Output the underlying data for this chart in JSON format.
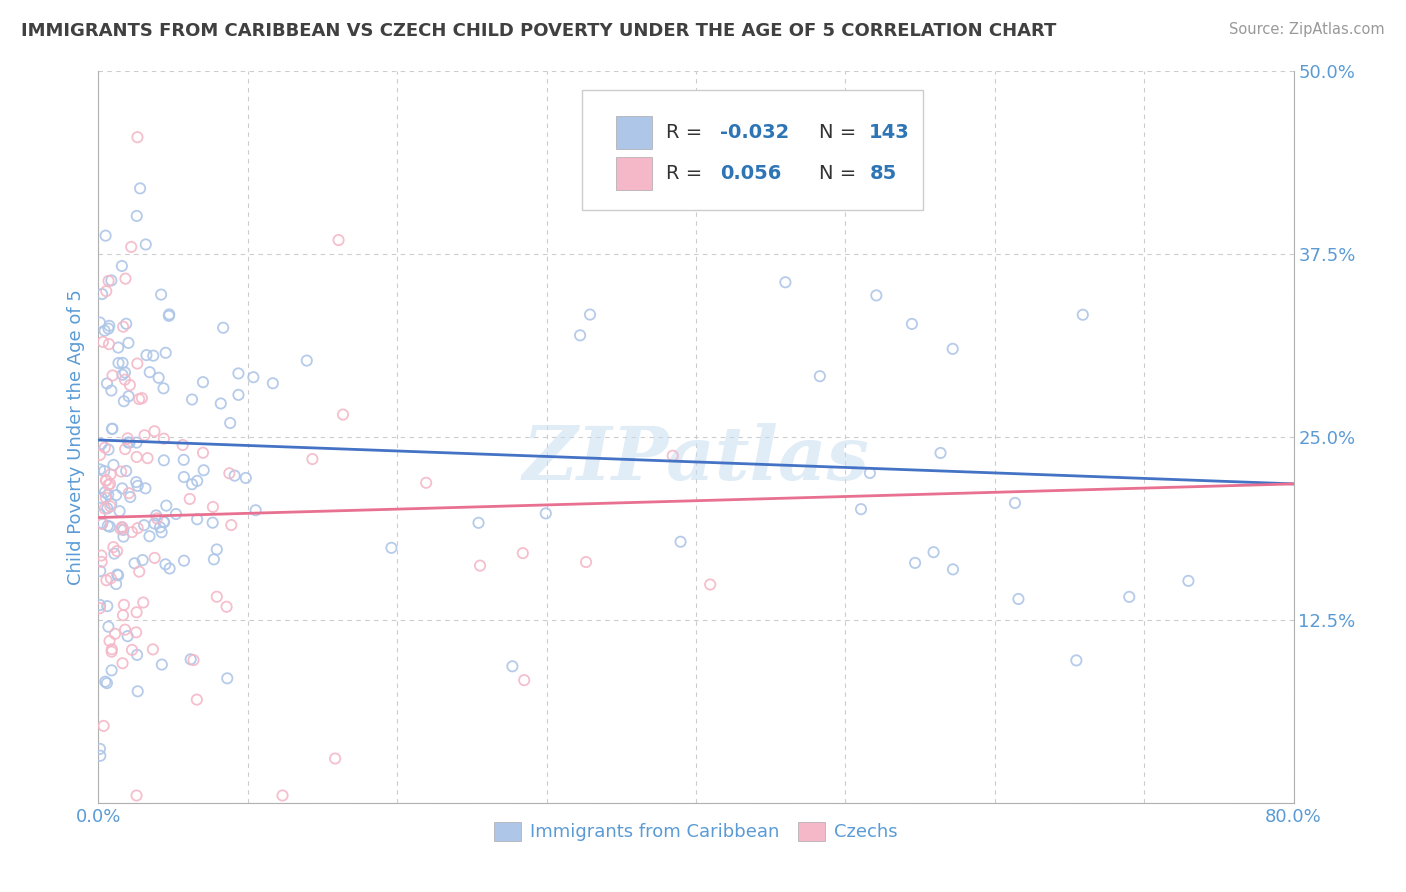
{
  "title": "IMMIGRANTS FROM CARIBBEAN VS CZECH CHILD POVERTY UNDER THE AGE OF 5 CORRELATION CHART",
  "source": "Source: ZipAtlas.com",
  "ylabel": "Child Poverty Under the Age of 5",
  "xlim": [
    0.0,
    0.8
  ],
  "ylim": [
    0.0,
    0.5
  ],
  "xticks": [
    0.0,
    0.1,
    0.2,
    0.3,
    0.4,
    0.5,
    0.6,
    0.7,
    0.8
  ],
  "xticklabels": [
    "0.0%",
    "",
    "",
    "",
    "",
    "",
    "",
    "",
    "80.0%"
  ],
  "yticks": [
    0.0,
    0.125,
    0.25,
    0.375,
    0.5
  ],
  "yticklabels": [
    "",
    "12.5%",
    "25.0%",
    "37.5%",
    "50.0%"
  ],
  "series1_label": "Immigrants from Caribbean",
  "series1_R": -0.032,
  "series1_N": 143,
  "series1_color": "#aec6e8",
  "series1_line_color": "#4472c4",
  "series2_label": "Czechs",
  "series2_R": 0.056,
  "series2_N": 85,
  "series2_color": "#f4b8c8",
  "series2_line_color": "#e87090",
  "watermark": "ZIPatlas",
  "background_color": "#ffffff",
  "grid_color": "#cccccc",
  "title_color": "#404040",
  "axis_label_color": "#5b9bd5",
  "tick_label_color": "#5b9bd5",
  "legend_R_color": "#2e75b6",
  "trend1_y_start": 0.248,
  "trend1_y_end": 0.218,
  "trend2_y_start": 0.195,
  "trend2_y_end": 0.218
}
